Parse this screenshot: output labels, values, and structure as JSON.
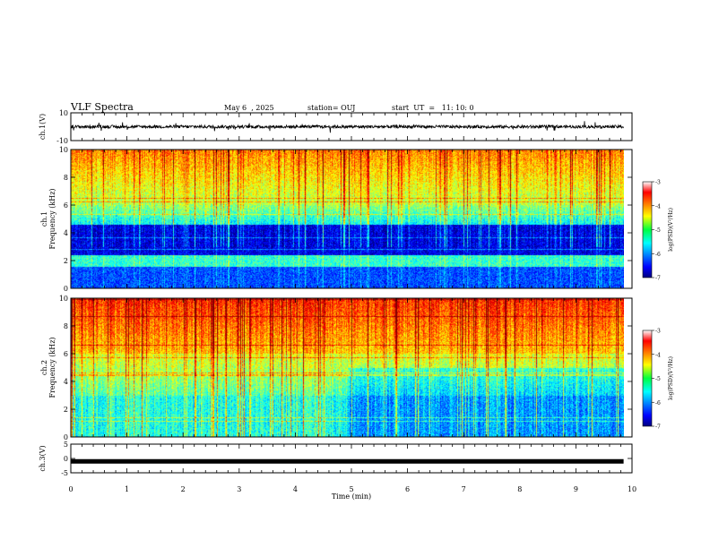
{
  "header": {
    "title": "VLF Spectra",
    "date": "May 6  , 2025",
    "station": "station= OUJ",
    "start": "start  UT  =   11: 10: 0"
  },
  "chart_data": [
    {
      "type": "line",
      "panel": "ch1-waveform",
      "ylabel": "ch.1(V)",
      "ylim": [
        -10,
        10
      ],
      "yticks": [
        "10",
        "-10"
      ],
      "xlim": [
        0,
        10
      ],
      "baseline": 0,
      "color": "#000000"
    },
    {
      "type": "heatmap",
      "panel": "ch1-spectrogram",
      "ylabel": "ch.1\nFrequency (kHz)",
      "ylabel_top": "ch.1",
      "ylabel_bottom": "Frequency (kHz)",
      "ylim": [
        0,
        10
      ],
      "yticks": [
        "0",
        "2",
        "4",
        "6",
        "8",
        "10"
      ],
      "xlim": [
        0,
        9.85
      ],
      "colorbar": {
        "label": "log(PSD)(V²/Hz)",
        "range": [
          -7,
          -3
        ],
        "ticks": [
          "-3",
          "-4",
          "-5",
          "-6",
          "-7"
        ]
      }
    },
    {
      "type": "heatmap",
      "panel": "ch2-spectrogram",
      "ylabel": "ch.2\nFrequency (kHz)",
      "ylabel_top": "ch.2",
      "ylabel_bottom": "Frequency (kHz)",
      "ylim": [
        0,
        10
      ],
      "yticks": [
        "0",
        "2",
        "4",
        "6",
        "8",
        "10"
      ],
      "xlim": [
        0,
        9.85
      ],
      "colorbar": {
        "label": "log(PSD)(V²/Hz)",
        "range": [
          -7,
          -3
        ],
        "ticks": [
          "-3",
          "-4",
          "-5",
          "-6",
          "-7"
        ]
      }
    },
    {
      "type": "line",
      "panel": "ch3-waveform",
      "ylabel": "ch.3(V)",
      "ylim": [
        -5,
        5
      ],
      "yticks": [
        "5",
        "0",
        "-5"
      ],
      "xlim": [
        0,
        10
      ],
      "baseline": -1,
      "color": "#000000"
    }
  ],
  "xaxis": {
    "label": "Time  (min)",
    "range": [
      0,
      10
    ],
    "ticks": [
      "0",
      "1",
      "2",
      "3",
      "4",
      "5",
      "6",
      "7",
      "8",
      "9",
      "10"
    ]
  }
}
